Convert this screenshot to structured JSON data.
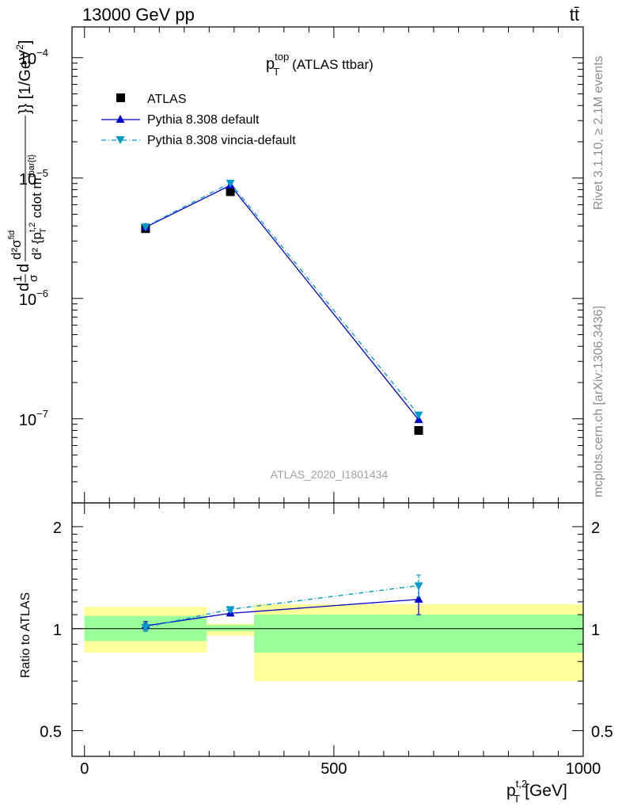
{
  "header": {
    "energy_label": "13000 GeV pp",
    "process_label": "tt̄"
  },
  "side_labels": {
    "rivet": "Rivet 3.1.10, ≥ 2.1M events",
    "mcplots": "mcplots.cern.ch [arXiv:1306.3436]"
  },
  "chart_data": [
    {
      "type": "line",
      "panel": "main",
      "title_main": "p",
      "title_sup": "top",
      "title_sub": "T",
      "title_suffix": "(ATLAS ttbar)",
      "watermark": "ATLAS_2020_I1801434",
      "y_scale": "log",
      "ylim": [
        2e-08,
        0.00018
      ],
      "xlim": [
        -25,
        1000
      ],
      "ylabel_parts": {
        "a": "d",
        "frac_num": "1",
        "frac_den": "σ",
        "b": "d",
        "stack_num": "d²σ",
        "stack_num_sup": "fid",
        "stack_den": "d² {p",
        "stack_den_sup": "t,2",
        "stack_den_sub": "T",
        "stack_den_mid": " cdot m",
        "stack_den_sup2": "tbar{t}",
        "stack_den_end": "}} [1/GeV",
        "stack_den_sup3": "2",
        "stack_den_close": "]"
      },
      "y_ticks": [
        {
          "value": 1e-07,
          "base": "10",
          "exp": "−7"
        },
        {
          "value": 1e-06,
          "base": "10",
          "exp": "−6"
        },
        {
          "value": 1e-05,
          "base": "10",
          "exp": "−5"
        },
        {
          "value": 0.0001,
          "base": "10",
          "exp": "−4"
        }
      ],
      "legend": [
        {
          "label": "ATLAS",
          "marker": "square",
          "color": "#000000"
        },
        {
          "label": "Pythia 8.308 default",
          "marker": "triangle-up",
          "color": "#0000cc"
        },
        {
          "label": "Pythia 8.308 vincia-default",
          "marker": "triangle-down",
          "color": "#0099cc"
        }
      ],
      "legend_position": "top-left",
      "x": [
        122.5,
        292.5,
        670
      ],
      "series": [
        {
          "name": "ATLAS",
          "values": [
            3.8e-06,
            7.7e-06,
            8e-08
          ],
          "color": "#000000"
        },
        {
          "name": "Pythia 8.308 default",
          "values": [
            3.9e-06,
            8.7e-06,
            9.8e-08
          ],
          "color": "#0000cc"
        },
        {
          "name": "Pythia 8.308 vincia-default",
          "values": [
            3.95e-06,
            9.1e-06,
            1.08e-07
          ],
          "color": "#0099cc"
        }
      ]
    },
    {
      "type": "line",
      "panel": "ratio",
      "ylabel": "Ratio to ATLAS",
      "xlabel_base": "p",
      "xlabel_sup": "t,2",
      "xlabel_sub": "T",
      "xlabel_unit": "[GeV]",
      "y_scale": "log",
      "ylim": [
        0.42,
        2.35
      ],
      "xlim": [
        -25,
        1000
      ],
      "x_tick_labels": [
        {
          "value": 0,
          "label": "0"
        },
        {
          "value": 500,
          "label": "500"
        },
        {
          "value": 1000,
          "label": "1000"
        }
      ],
      "y_tick_labels": [
        {
          "value": 0.5,
          "label": "0.5"
        },
        {
          "value": 1,
          "label": "1"
        },
        {
          "value": 2,
          "label": "2"
        }
      ],
      "bands": [
        {
          "x0": 0,
          "x1": 245,
          "inner": [
            0.92,
            1.09
          ],
          "outer": [
            0.85,
            1.16
          ]
        },
        {
          "x0": 245,
          "x1": 340,
          "inner": [
            0.985,
            1.025
          ],
          "outer": [
            0.955,
            1.035
          ]
        },
        {
          "x0": 340,
          "x1": 1000,
          "inner": [
            0.85,
            1.1
          ],
          "outer": [
            0.7,
            1.18
          ]
        }
      ],
      "x": [
        122.5,
        292.5,
        670
      ],
      "series": [
        {
          "name": "Pythia 8.308 default",
          "values": [
            1.02,
            1.11,
            1.22
          ],
          "err": [
            0.03,
            0.02,
            0.12
          ],
          "color": "#0000cc"
        },
        {
          "name": "Pythia 8.308 vincia-default",
          "values": [
            1.01,
            1.14,
            1.34
          ],
          "err": [
            0.03,
            0.02,
            0.1
          ],
          "color": "#0099cc"
        }
      ]
    }
  ]
}
